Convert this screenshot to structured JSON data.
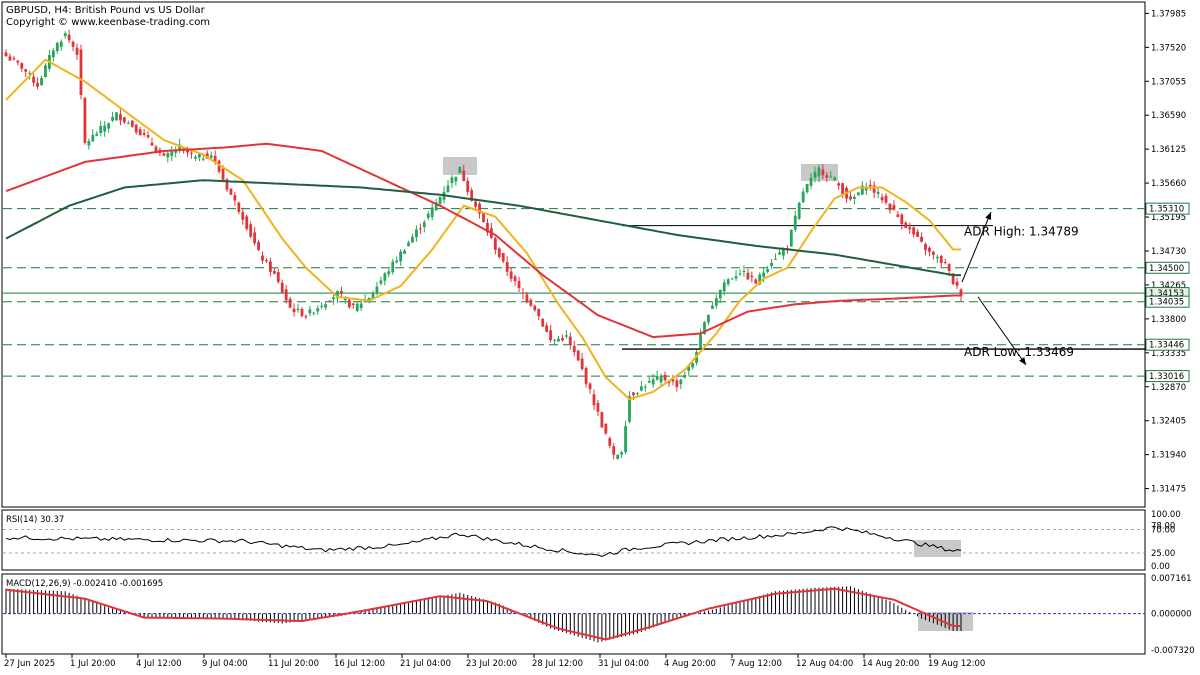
{
  "header": {
    "title": "GBPUSD, H4:  British Pound vs US Dollar",
    "copyright": "Copyright © www.keenbase-trading.com"
  },
  "colors": {
    "bull": "#26a65b",
    "bear": "#e0343a",
    "ema_fast": "#f2b31c",
    "ema_mid": "#e0343a",
    "ema_slow": "#1f5e3e",
    "level": "#1b7a3c",
    "highlight": "#c8c8c8"
  },
  "chart_data": [
    {
      "type": "candlestick",
      "panel": "price",
      "ylim": [
        1.3125,
        1.381
      ],
      "price_ticks": [
        "1.37985",
        "1.37520",
        "1.37055",
        "1.36590",
        "1.36125",
        "1.35660",
        "1.35195",
        "1.34730",
        "1.34265",
        "1.33800",
        "1.33335",
        "1.32870",
        "1.32405",
        "1.31940",
        "1.31475"
      ],
      "x_labels": [
        "27 Jun 2025",
        "1 Jul 20:00",
        "4 Jul 12:00",
        "9 Jul 04:00",
        "11 Jul 20:00",
        "16 Jul 12:00",
        "21 Jul 04:00",
        "23 Jul 20:00",
        "28 Jul 12:00",
        "31 Jul 04:00",
        "4 Aug 20:00",
        "7 Aug 12:00",
        "12 Aug 04:00",
        "14 Aug 20:00",
        "19 Aug 12:00"
      ],
      "anchors": [
        [
          0,
          1.374
        ],
        [
          4,
          1.3725
        ],
        [
          8,
          1.37
        ],
        [
          12,
          1.375
        ],
        [
          15,
          1.377
        ],
        [
          18,
          1.3745
        ],
        [
          20,
          1.362
        ],
        [
          24,
          1.364
        ],
        [
          28,
          1.366
        ],
        [
          32,
          1.3645
        ],
        [
          36,
          1.3625
        ],
        [
          40,
          1.36
        ],
        [
          44,
          1.3615
        ],
        [
          48,
          1.36
        ],
        [
          52,
          1.3605
        ],
        [
          56,
          1.356
        ],
        [
          60,
          1.352
        ],
        [
          64,
          1.347
        ],
        [
          68,
          1.344
        ],
        [
          72,
          1.3395
        ],
        [
          76,
          1.3385
        ],
        [
          80,
          1.34
        ],
        [
          84,
          1.3415
        ],
        [
          88,
          1.3395
        ],
        [
          92,
          1.341
        ],
        [
          96,
          1.344
        ],
        [
          100,
          1.347
        ],
        [
          104,
          1.35
        ],
        [
          108,
          1.353
        ],
        [
          112,
          1.3565
        ],
        [
          115,
          1.3585
        ],
        [
          118,
          1.3545
        ],
        [
          122,
          1.35
        ],
        [
          126,
          1.3455
        ],
        [
          130,
          1.342
        ],
        [
          134,
          1.3395
        ],
        [
          138,
          1.335
        ],
        [
          142,
          1.3355
        ],
        [
          146,
          1.331
        ],
        [
          150,
          1.325
        ],
        [
          154,
          1.319
        ],
        [
          156,
          1.32
        ],
        [
          158,
          1.3275
        ],
        [
          162,
          1.329
        ],
        [
          166,
          1.33
        ],
        [
          170,
          1.329
        ],
        [
          174,
          1.332
        ],
        [
          178,
          1.339
        ],
        [
          182,
          1.343
        ],
        [
          186,
          1.3445
        ],
        [
          190,
          1.343
        ],
        [
          194,
          1.346
        ],
        [
          198,
          1.348
        ],
        [
          202,
          1.3555
        ],
        [
          206,
          1.3585
        ],
        [
          210,
          1.357
        ],
        [
          214,
          1.354
        ],
        [
          218,
          1.3565
        ],
        [
          222,
          1.3545
        ],
        [
          226,
          1.352
        ],
        [
          230,
          1.3495
        ],
        [
          234,
          1.347
        ],
        [
          238,
          1.3455
        ],
        [
          240,
          1.343
        ],
        [
          242,
          1.3415
        ]
      ],
      "series": [
        {
          "name": "EMA fast",
          "anchors": [
            [
              0,
              1.368
            ],
            [
              10,
              1.3735
            ],
            [
              20,
              1.3705
            ],
            [
              30,
              1.3665
            ],
            [
              40,
              1.3625
            ],
            [
              50,
              1.3605
            ],
            [
              60,
              1.357
            ],
            [
              70,
              1.349
            ],
            [
              76,
              1.345
            ],
            [
              84,
              1.341
            ],
            [
              92,
              1.3405
            ],
            [
              100,
              1.3425
            ],
            [
              108,
              1.3475
            ],
            [
              116,
              1.3535
            ],
            [
              124,
              1.352
            ],
            [
              132,
              1.347
            ],
            [
              140,
              1.34
            ],
            [
              146,
              1.3355
            ],
            [
              152,
              1.33
            ],
            [
              158,
              1.327
            ],
            [
              164,
              1.328
            ],
            [
              172,
              1.331
            ],
            [
              180,
              1.336
            ],
            [
              186,
              1.3405
            ],
            [
              192,
              1.3435
            ],
            [
              198,
              1.345
            ],
            [
              204,
              1.35
            ],
            [
              210,
              1.3545
            ],
            [
              216,
              1.356
            ],
            [
              222,
              1.356
            ],
            [
              228,
              1.354
            ],
            [
              234,
              1.3515
            ],
            [
              240,
              1.3475
            ]
          ]
        },
        {
          "name": "EMA mid",
          "anchors": [
            [
              0,
              1.3555
            ],
            [
              20,
              1.3595
            ],
            [
              40,
              1.361
            ],
            [
              56,
              1.3615
            ],
            [
              66,
              1.362
            ],
            [
              80,
              1.361
            ],
            [
              96,
              1.357
            ],
            [
              110,
              1.3535
            ],
            [
              124,
              1.3495
            ],
            [
              136,
              1.344
            ],
            [
              150,
              1.3385
            ],
            [
              164,
              1.3355
            ],
            [
              176,
              1.336
            ],
            [
              188,
              1.339
            ],
            [
              200,
              1.34
            ],
            [
              212,
              1.3405
            ],
            [
              226,
              1.3408
            ],
            [
              240,
              1.3412
            ]
          ]
        },
        {
          "name": "EMA slow",
          "anchors": [
            [
              0,
              1.349
            ],
            [
              16,
              1.3535
            ],
            [
              30,
              1.356
            ],
            [
              50,
              1.357
            ],
            [
              70,
              1.3565
            ],
            [
              90,
              1.356
            ],
            [
              110,
              1.355
            ],
            [
              130,
              1.3535
            ],
            [
              150,
              1.3515
            ],
            [
              170,
              1.3495
            ],
            [
              190,
              1.348
            ],
            [
              210,
              1.3468
            ],
            [
              240,
              1.344
            ]
          ]
        }
      ],
      "levels": [
        {
          "label": "1.35310",
          "value": 1.3531,
          "style": "dashed"
        },
        {
          "label": "1.34500",
          "value": 1.345,
          "style": "dashed"
        },
        {
          "label": "1.34153",
          "value": 1.34153,
          "style": "solid"
        },
        {
          "label": "1.34035",
          "value": 1.34035,
          "style": "dashed"
        },
        {
          "label": "1.33446",
          "value": 1.33446,
          "style": "dashed"
        },
        {
          "label": "1.33016",
          "value": 1.33016,
          "style": "dashed"
        }
      ],
      "annotations": [
        {
          "label": "ADR High: 1.34789",
          "value": 1.34789
        },
        {
          "label": "ADR Low: 1.33469",
          "value": 1.33469
        }
      ]
    },
    {
      "type": "line",
      "panel": "rsi",
      "title": "RSI(14) 30.37",
      "ylim": [
        0,
        100
      ],
      "y_ticks": [
        "100.00",
        "78.00",
        "70.00",
        "25.00",
        "0.00"
      ],
      "y_tick_values": [
        100,
        78,
        70,
        25,
        0
      ],
      "anchors": [
        [
          0,
          55
        ],
        [
          20,
          52
        ],
        [
          40,
          50
        ],
        [
          60,
          48
        ],
        [
          80,
          30
        ],
        [
          100,
          40
        ],
        [
          115,
          62
        ],
        [
          125,
          48
        ],
        [
          135,
          36
        ],
        [
          150,
          20
        ],
        [
          160,
          35
        ],
        [
          180,
          50
        ],
        [
          200,
          62
        ],
        [
          210,
          75
        ],
        [
          224,
          55
        ],
        [
          232,
          42
        ],
        [
          240,
          30
        ]
      ]
    },
    {
      "type": "bar",
      "panel": "macd",
      "title": "MACD(12,26,9) -0.002410 -0.001695",
      "ylim": [
        -0.00732,
        0.007161
      ],
      "y_ticks": [
        "0.007161",
        "0.000000",
        "-0.007320"
      ],
      "y_tick_values": [
        0.007161,
        0.0,
        -0.00732
      ],
      "anchors": [
        [
          0,
          0.005
        ],
        [
          15,
          0.0045
        ],
        [
          25,
          0.0015
        ],
        [
          35,
          -0.001
        ],
        [
          45,
          -0.0008
        ],
        [
          55,
          -0.001
        ],
        [
          70,
          -0.002
        ],
        [
          85,
          -0.0005
        ],
        [
          100,
          0.002
        ],
        [
          115,
          0.0042
        ],
        [
          125,
          0.002
        ],
        [
          138,
          -0.003
        ],
        [
          150,
          -0.0058
        ],
        [
          160,
          -0.004
        ],
        [
          170,
          -0.001
        ],
        [
          180,
          0.001
        ],
        [
          195,
          0.0045
        ],
        [
          205,
          0.0052
        ],
        [
          214,
          0.0055
        ],
        [
          224,
          0.0025
        ],
        [
          232,
          -0.001
        ],
        [
          240,
          -0.0035
        ]
      ],
      "series": [
        {
          "name": "Signal",
          "anchors": [
            [
              0,
              0.0048
            ],
            [
              20,
              0.003
            ],
            [
              35,
              -0.0008
            ],
            [
              55,
              -0.001
            ],
            [
              75,
              -0.0015
            ],
            [
              90,
              0.0005
            ],
            [
              110,
              0.0035
            ],
            [
              122,
              0.0025
            ],
            [
              140,
              -0.003
            ],
            [
              152,
              -0.0052
            ],
            [
              164,
              -0.0025
            ],
            [
              178,
              0.001
            ],
            [
              195,
              0.004
            ],
            [
              210,
              0.005
            ],
            [
              225,
              0.0028
            ],
            [
              240,
              -0.0025
            ]
          ]
        }
      ]
    }
  ]
}
